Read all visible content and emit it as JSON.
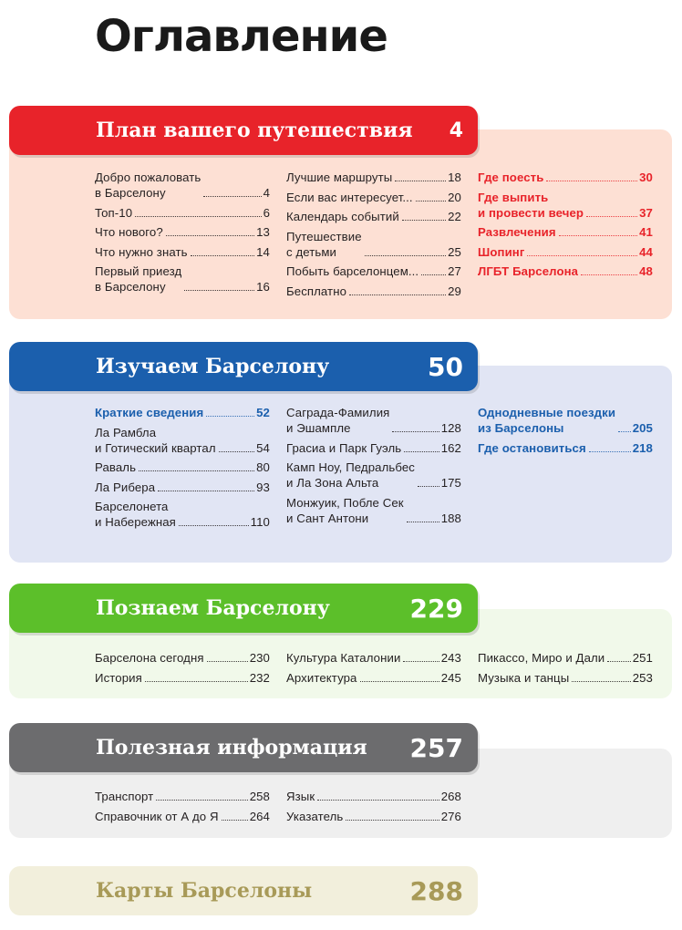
{
  "page_title": "Оглавление",
  "sections": [
    {
      "title": "План вашего путешествия",
      "page": "4",
      "color": "#e8232a",
      "panel_color": "#fde0d4",
      "title_color": "#ffffff",
      "columns": [
        [
          {
            "text": "Добро пожаловать\nв Барселону",
            "page": "4"
          },
          {
            "text": "Топ-10",
            "page": "6"
          },
          {
            "text": "Что нового?",
            "page": "13"
          },
          {
            "text": "Что нужно знать",
            "page": "14"
          },
          {
            "text": "Первый приезд\nв Барселону",
            "page": "16"
          }
        ],
        [
          {
            "text": "Лучшие маршруты",
            "page": "18"
          },
          {
            "text": "Если вас интересует...",
            "page": "20"
          },
          {
            "text": "Календарь событий",
            "page": "22"
          },
          {
            "text": "Путешествие\nс детьми",
            "page": "25"
          },
          {
            "text": "Побыть барселонцем...",
            "page": "27"
          },
          {
            "text": "Бесплатно",
            "page": "29"
          }
        ],
        [
          {
            "text": "Где поесть",
            "page": "30",
            "highlight": true
          },
          {
            "text": "Где выпить\nи провести вечер",
            "page": "37",
            "highlight": true
          },
          {
            "text": "Развлечения",
            "page": "41",
            "highlight": true
          },
          {
            "text": "Шопинг",
            "page": "44",
            "highlight": true
          },
          {
            "text": "ЛГБТ Барселона",
            "page": "48",
            "highlight": true
          }
        ]
      ]
    },
    {
      "title": "Изучаем Барселону",
      "page": "50",
      "color": "#1b5fad",
      "panel_color": "#e1e5f4",
      "title_color": "#ffffff",
      "columns": [
        [
          {
            "text": "Краткие сведения",
            "page": "52",
            "highlight": true
          },
          {
            "text": "Ла Рамбла\nи Готический квартал",
            "page": "54"
          },
          {
            "text": "Раваль",
            "page": "80"
          },
          {
            "text": "Ла Рибера",
            "page": "93"
          },
          {
            "text": "Барселонета\nи Набережная",
            "page": "110"
          }
        ],
        [
          {
            "text": "Саграда-Фамилия\nи Эшампле",
            "page": "128"
          },
          {
            "text": "Грасиа и Парк Гуэль",
            "page": "162"
          },
          {
            "text": "Камп Ноу, Педральбес\nи Ла Зона Альта",
            "page": "175"
          },
          {
            "text": "Монжуик, Побле Сек\nи Сант Антони",
            "page": "188"
          }
        ],
        [
          {
            "text": "Однодневные поездки\nиз Барселоны",
            "page": "205",
            "highlight": true
          },
          {
            "text": "Где остановиться",
            "page": "218",
            "highlight": true
          }
        ]
      ]
    },
    {
      "title": "Познаем Барселону",
      "page": "229",
      "color": "#5cbf2a",
      "panel_color": "#f1f9ea",
      "title_color": "#ffffff",
      "columns": [
        [
          {
            "text": "Барселона сегодня",
            "page": "230"
          },
          {
            "text": "История",
            "page": "232"
          }
        ],
        [
          {
            "text": "Культура Каталонии",
            "page": "243"
          },
          {
            "text": "Архитектура",
            "page": "245"
          }
        ],
        [
          {
            "text": "Пикассо, Миро и Дали",
            "page": "251"
          },
          {
            "text": "Музыка и танцы",
            "page": "253"
          }
        ]
      ]
    },
    {
      "title": "Полезная информация",
      "page": "257",
      "color": "#6c6c6e",
      "panel_color": "#efefef",
      "title_color": "#ffffff",
      "columns": [
        [
          {
            "text": "Транспорт",
            "page": "258"
          },
          {
            "text": "Справочник от А до Я",
            "page": "264"
          }
        ],
        [
          {
            "text": "Язык",
            "page": "268"
          },
          {
            "text": "Указатель",
            "page": "276"
          }
        ],
        []
      ]
    },
    {
      "title": "Карты Барселоны",
      "page": "288",
      "color": "#f2efdc",
      "panel_color": "",
      "title_color": "#a89a58",
      "columns": [
        [],
        [],
        []
      ]
    }
  ]
}
